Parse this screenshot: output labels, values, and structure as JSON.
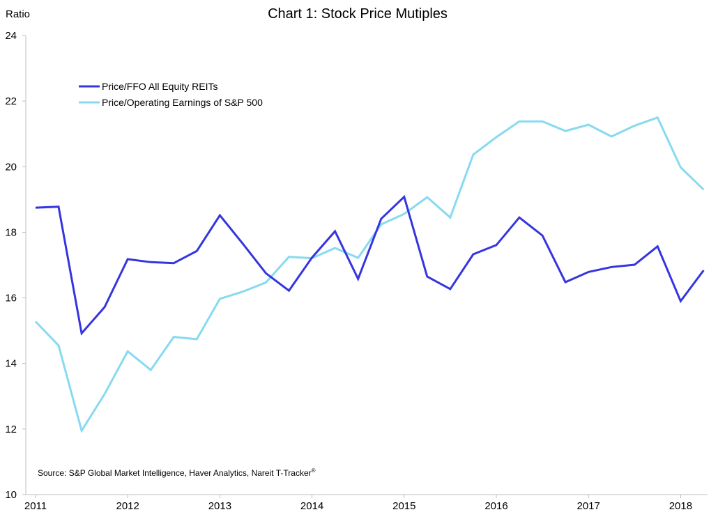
{
  "chart_data": {
    "type": "line",
    "title": "Chart 1: Stock Price Mutiples",
    "ylabel": "Ratio",
    "xlabel": "",
    "ylim": [
      10,
      24
    ],
    "yticks": [
      10,
      12,
      14,
      16,
      18,
      20,
      22,
      24
    ],
    "x_tick_labels": [
      "2011",
      "2012",
      "2013",
      "2014",
      "2015",
      "2016",
      "2017",
      "2018"
    ],
    "x_tick_index": [
      0,
      4,
      8,
      12,
      16,
      20,
      24,
      28
    ],
    "grid": false,
    "legend_position": "top-left",
    "source": "Source: S&P Global Market Intelligence, Haver Analytics, Nareit T-Tracker",
    "source_sup": "®",
    "series": [
      {
        "name": "Price/FFO All Equity REITs",
        "color": "#3535e0",
        "values": [
          18.75,
          18.78,
          14.92,
          15.72,
          17.18,
          17.09,
          17.06,
          17.43,
          18.52,
          17.65,
          16.75,
          16.22,
          17.23,
          18.03,
          16.58,
          18.41,
          19.08,
          16.65,
          16.27,
          17.33,
          17.61,
          18.45,
          17.9,
          16.48,
          16.79,
          16.94,
          17.01,
          17.57,
          15.9,
          16.84
        ]
      },
      {
        "name": "Price/Operating Earnings of S&P 500",
        "color": "#87daf0",
        "values": [
          15.28,
          14.55,
          11.95,
          13.07,
          14.37,
          13.8,
          14.81,
          14.74,
          15.97,
          16.19,
          16.47,
          17.25,
          17.21,
          17.52,
          17.22,
          18.24,
          18.56,
          19.07,
          18.45,
          20.37,
          20.9,
          21.38,
          21.38,
          21.09,
          21.28,
          20.92,
          21.25,
          21.5,
          19.98,
          19.3
        ]
      }
    ]
  }
}
